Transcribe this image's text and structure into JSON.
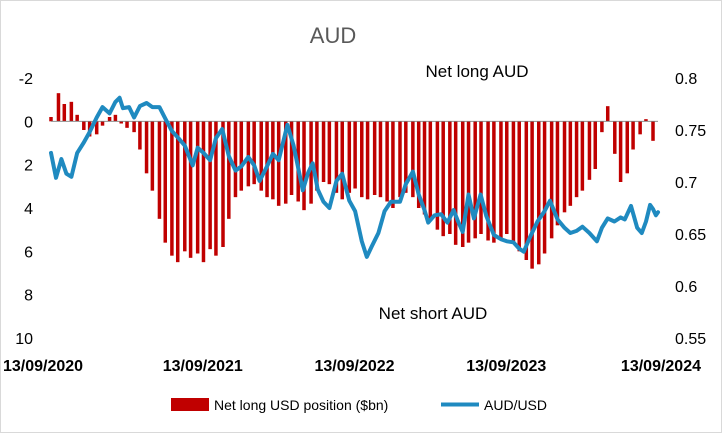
{
  "chart_data": {
    "type": "bar+line",
    "title": "AUD",
    "annotations": {
      "top": "Net long AUD",
      "bottom": "Net short AUD"
    },
    "left_axis": {
      "reversed": true,
      "range": [
        -2,
        10
      ],
      "ticks": [
        "-2",
        "0",
        "2",
        "4",
        "6",
        "8",
        "10"
      ]
    },
    "right_axis": {
      "range": [
        0.55,
        0.8
      ],
      "ticks": [
        "0.8",
        "0.75",
        "0.7",
        "0.65",
        "0.6",
        "0.55"
      ]
    },
    "x_axis": {
      "range": [
        "2020-09-13",
        "2024-09-13"
      ],
      "tick_labels": [
        "13/09/2020",
        "13/09/2021",
        "13/09/2022",
        "13/09/2023",
        "13/09/2024"
      ]
    },
    "grid": false,
    "legend_position": "bottom",
    "series": [
      {
        "name": "Net long USD position ($bn)",
        "kind": "bar",
        "axis": "left",
        "color": "#c00000",
        "points": [
          [
            "2020-09-13",
            -0.2
          ],
          [
            "2020-10-01",
            -1.3
          ],
          [
            "2020-10-15",
            -0.8
          ],
          [
            "2020-11-01",
            -0.9
          ],
          [
            "2020-11-15",
            -0.3
          ],
          [
            "2020-12-01",
            0.4
          ],
          [
            "2020-12-15",
            0.7
          ],
          [
            "2021-01-01",
            0.6
          ],
          [
            "2021-01-15",
            0.2
          ],
          [
            "2021-02-01",
            -0.2
          ],
          [
            "2021-02-15",
            -0.3
          ],
          [
            "2021-03-01",
            0.1
          ],
          [
            "2021-03-15",
            0.3
          ],
          [
            "2021-04-01",
            0.5
          ],
          [
            "2021-04-15",
            1.3
          ],
          [
            "2021-05-01",
            2.4
          ],
          [
            "2021-05-15",
            3.2
          ],
          [
            "2021-06-01",
            4.5
          ],
          [
            "2021-06-15",
            5.6
          ],
          [
            "2021-07-01",
            6.2
          ],
          [
            "2021-07-15",
            6.5
          ],
          [
            "2021-08-01",
            6.0
          ],
          [
            "2021-08-15",
            6.3
          ],
          [
            "2021-09-01",
            6.1
          ],
          [
            "2021-09-15",
            6.5
          ],
          [
            "2021-10-01",
            5.9
          ],
          [
            "2021-10-15",
            6.2
          ],
          [
            "2021-11-01",
            5.8
          ],
          [
            "2021-11-15",
            4.5
          ],
          [
            "2021-12-01",
            3.5
          ],
          [
            "2021-12-15",
            3.2
          ],
          [
            "2022-01-01",
            3.0
          ],
          [
            "2022-01-15",
            2.9
          ],
          [
            "2022-02-01",
            3.2
          ],
          [
            "2022-02-15",
            3.5
          ],
          [
            "2022-03-01",
            3.6
          ],
          [
            "2022-03-15",
            3.9
          ],
          [
            "2022-04-01",
            3.8
          ],
          [
            "2022-04-15",
            3.4
          ],
          [
            "2022-05-01",
            3.7
          ],
          [
            "2022-05-15",
            4.1
          ],
          [
            "2022-06-01",
            3.8
          ],
          [
            "2022-06-15",
            3.2
          ],
          [
            "2022-07-01",
            2.8
          ],
          [
            "2022-07-15",
            2.9
          ],
          [
            "2022-08-01",
            3.3
          ],
          [
            "2022-08-15",
            3.6
          ],
          [
            "2022-09-01",
            3.3
          ],
          [
            "2022-09-15",
            3.1
          ],
          [
            "2022-10-01",
            3.5
          ],
          [
            "2022-10-15",
            3.6
          ],
          [
            "2022-11-01",
            3.4
          ],
          [
            "2022-11-15",
            3.5
          ],
          [
            "2022-12-01",
            3.7
          ],
          [
            "2022-12-15",
            4.0
          ],
          [
            "2023-01-01",
            3.5
          ],
          [
            "2023-01-15",
            3.3
          ],
          [
            "2023-02-01",
            3.5
          ],
          [
            "2023-02-15",
            4.0
          ],
          [
            "2023-03-01",
            4.3
          ],
          [
            "2023-03-15",
            4.6
          ],
          [
            "2023-04-01",
            5.0
          ],
          [
            "2023-04-15",
            5.3
          ],
          [
            "2023-05-01",
            5.2
          ],
          [
            "2023-05-15",
            5.7
          ],
          [
            "2023-06-01",
            5.8
          ],
          [
            "2023-06-15",
            5.6
          ],
          [
            "2023-07-01",
            5.4
          ],
          [
            "2023-07-15",
            5.2
          ],
          [
            "2023-08-01",
            5.5
          ],
          [
            "2023-08-15",
            5.6
          ],
          [
            "2023-09-01",
            5.4
          ],
          [
            "2023-09-15",
            5.2
          ],
          [
            "2023-10-01",
            5.6
          ],
          [
            "2023-10-15",
            6.0
          ],
          [
            "2023-11-01",
            6.4
          ],
          [
            "2023-11-15",
            6.8
          ],
          [
            "2023-12-01",
            6.6
          ],
          [
            "2023-12-15",
            6.1
          ],
          [
            "2024-01-01",
            5.4
          ],
          [
            "2024-01-15",
            4.8
          ],
          [
            "2024-02-01",
            4.2
          ],
          [
            "2024-02-15",
            3.9
          ],
          [
            "2024-03-01",
            3.5
          ],
          [
            "2024-03-15",
            3.2
          ],
          [
            "2024-04-01",
            2.7
          ],
          [
            "2024-04-15",
            2.2
          ],
          [
            "2024-05-01",
            0.5
          ],
          [
            "2024-05-15",
            -0.7
          ],
          [
            "2024-06-01",
            1.5
          ],
          [
            "2024-06-15",
            2.8
          ],
          [
            "2024-07-01",
            2.4
          ],
          [
            "2024-07-15",
            1.3
          ],
          [
            "2024-08-01",
            0.6
          ],
          [
            "2024-08-15",
            -0.1
          ],
          [
            "2024-09-01",
            0.9
          ]
        ]
      },
      {
        "name": "AUD/USD",
        "kind": "line",
        "axis": "right",
        "color": "#1f8ac0",
        "points": [
          [
            "2020-09-13",
            0.728
          ],
          [
            "2020-09-25",
            0.704
          ],
          [
            "2020-10-08",
            0.722
          ],
          [
            "2020-10-20",
            0.708
          ],
          [
            "2020-11-01",
            0.705
          ],
          [
            "2020-11-15",
            0.728
          ],
          [
            "2020-12-01",
            0.738
          ],
          [
            "2020-12-15",
            0.748
          ],
          [
            "2021-01-01",
            0.762
          ],
          [
            "2021-01-15",
            0.772
          ],
          [
            "2021-02-01",
            0.766
          ],
          [
            "2021-02-15",
            0.777
          ],
          [
            "2021-02-25",
            0.781
          ],
          [
            "2021-03-05",
            0.771
          ],
          [
            "2021-03-20",
            0.772
          ],
          [
            "2021-04-01",
            0.762
          ],
          [
            "2021-04-15",
            0.773
          ],
          [
            "2021-05-01",
            0.776
          ],
          [
            "2021-05-15",
            0.772
          ],
          [
            "2021-06-01",
            0.772
          ],
          [
            "2021-06-15",
            0.761
          ],
          [
            "2021-07-01",
            0.749
          ],
          [
            "2021-07-15",
            0.743
          ],
          [
            "2021-08-01",
            0.735
          ],
          [
            "2021-08-20",
            0.716
          ],
          [
            "2021-09-01",
            0.733
          ],
          [
            "2021-09-15",
            0.728
          ],
          [
            "2021-10-01",
            0.721
          ],
          [
            "2021-10-15",
            0.742
          ],
          [
            "2021-10-30",
            0.751
          ],
          [
            "2021-11-15",
            0.725
          ],
          [
            "2021-12-01",
            0.711
          ],
          [
            "2021-12-15",
            0.715
          ],
          [
            "2022-01-01",
            0.724
          ],
          [
            "2022-01-15",
            0.716
          ],
          [
            "2022-01-28",
            0.701
          ],
          [
            "2022-02-15",
            0.715
          ],
          [
            "2022-03-01",
            0.727
          ],
          [
            "2022-03-15",
            0.721
          ],
          [
            "2022-04-05",
            0.755
          ],
          [
            "2022-04-20",
            0.735
          ],
          [
            "2022-05-12",
            0.692
          ],
          [
            "2022-05-25",
            0.709
          ],
          [
            "2022-06-05",
            0.718
          ],
          [
            "2022-06-17",
            0.693
          ],
          [
            "2022-07-01",
            0.681
          ],
          [
            "2022-07-15",
            0.675
          ],
          [
            "2022-08-01",
            0.701
          ],
          [
            "2022-08-15",
            0.708
          ],
          [
            "2022-09-01",
            0.682
          ],
          [
            "2022-09-15",
            0.672
          ],
          [
            "2022-10-01",
            0.643
          ],
          [
            "2022-10-13",
            0.628
          ],
          [
            "2022-10-25",
            0.638
          ],
          [
            "2022-11-10",
            0.651
          ],
          [
            "2022-11-25",
            0.672
          ],
          [
            "2022-12-10",
            0.681
          ],
          [
            "2023-01-01",
            0.681
          ],
          [
            "2023-01-15",
            0.698
          ],
          [
            "2023-02-01",
            0.71
          ],
          [
            "2023-02-15",
            0.688
          ],
          [
            "2023-03-01",
            0.673
          ],
          [
            "2023-03-10",
            0.661
          ],
          [
            "2023-03-25",
            0.668
          ],
          [
            "2023-04-10",
            0.669
          ],
          [
            "2023-04-25",
            0.661
          ],
          [
            "2023-05-10",
            0.673
          ],
          [
            "2023-05-20",
            0.663
          ],
          [
            "2023-06-01",
            0.652
          ],
          [
            "2023-06-15",
            0.688
          ],
          [
            "2023-06-28",
            0.665
          ],
          [
            "2023-07-14",
            0.688
          ],
          [
            "2023-07-28",
            0.667
          ],
          [
            "2023-08-15",
            0.649
          ],
          [
            "2023-09-01",
            0.645
          ],
          [
            "2023-09-15",
            0.643
          ],
          [
            "2023-10-01",
            0.642
          ],
          [
            "2023-10-15",
            0.636
          ],
          [
            "2023-10-26",
            0.633
          ],
          [
            "2023-11-10",
            0.647
          ],
          [
            "2023-11-28",
            0.662
          ],
          [
            "2023-12-15",
            0.672
          ],
          [
            "2023-12-28",
            0.682
          ],
          [
            "2024-01-15",
            0.664
          ],
          [
            "2024-02-01",
            0.656
          ],
          [
            "2024-02-15",
            0.651
          ],
          [
            "2024-03-01",
            0.653
          ],
          [
            "2024-03-15",
            0.657
          ],
          [
            "2024-04-01",
            0.651
          ],
          [
            "2024-04-19",
            0.643
          ],
          [
            "2024-05-01",
            0.656
          ],
          [
            "2024-05-15",
            0.665
          ],
          [
            "2024-05-31",
            0.662
          ],
          [
            "2024-06-15",
            0.666
          ],
          [
            "2024-06-25",
            0.664
          ],
          [
            "2024-07-10",
            0.677
          ],
          [
            "2024-07-25",
            0.656
          ],
          [
            "2024-08-05",
            0.651
          ],
          [
            "2024-08-15",
            0.662
          ],
          [
            "2024-08-25",
            0.678
          ],
          [
            "2024-09-01",
            0.674
          ],
          [
            "2024-09-08",
            0.668
          ],
          [
            "2024-09-13",
            0.671
          ]
        ]
      }
    ]
  }
}
